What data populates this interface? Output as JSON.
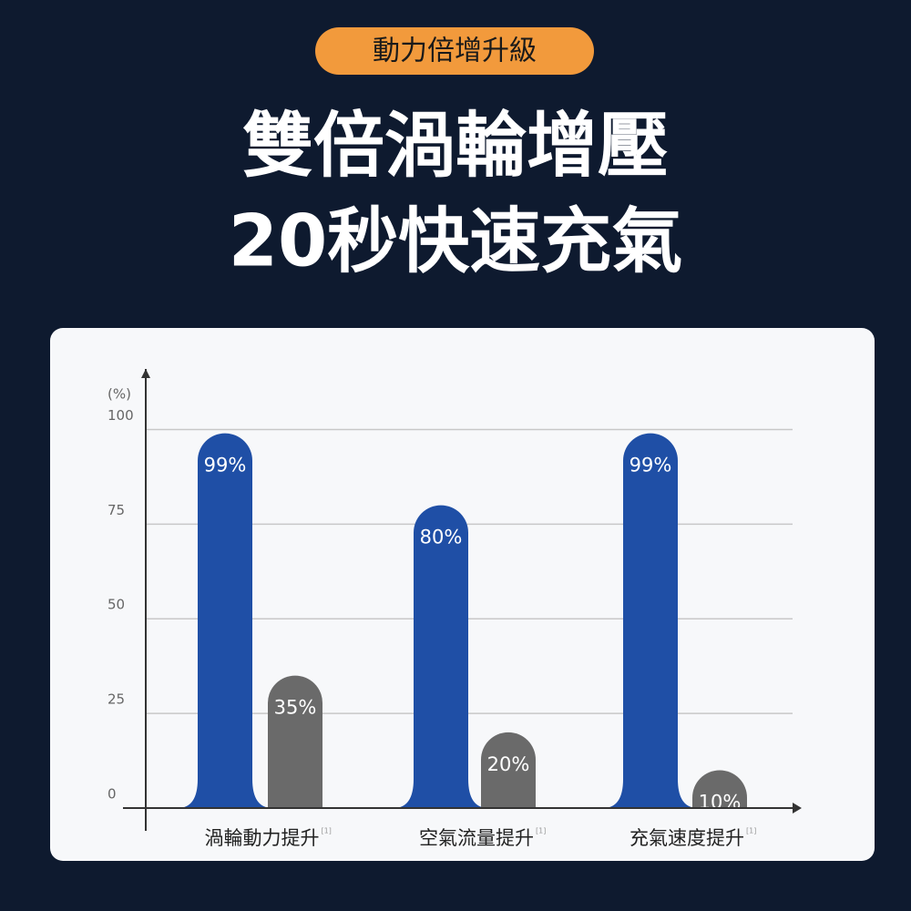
{
  "chart_data": {
    "type": "bar",
    "badge": "動力倍增升級",
    "title": "雙倍渦輪增壓",
    "subtitle": "20秒快速充氣",
    "y_label": "(%)",
    "categories": [
      "渦輪動力提升",
      "空氣流量提升",
      "充氣速度提升"
    ],
    "category_notes": [
      "[1]",
      "[1]",
      "[1]"
    ],
    "series": [
      {
        "color": "#1f4fa6",
        "values": [
          99,
          80,
          99
        ],
        "value_labels": [
          "99%",
          "80%",
          "99%"
        ]
      },
      {
        "color": "#6a6a6a",
        "values": [
          35,
          20,
          10
        ],
        "value_labels": [
          "35%",
          "20%",
          "10%"
        ]
      }
    ],
    "ylim": [
      0,
      116
    ],
    "yticks": [
      0,
      25,
      50,
      75,
      100
    ],
    "grid": true
  }
}
